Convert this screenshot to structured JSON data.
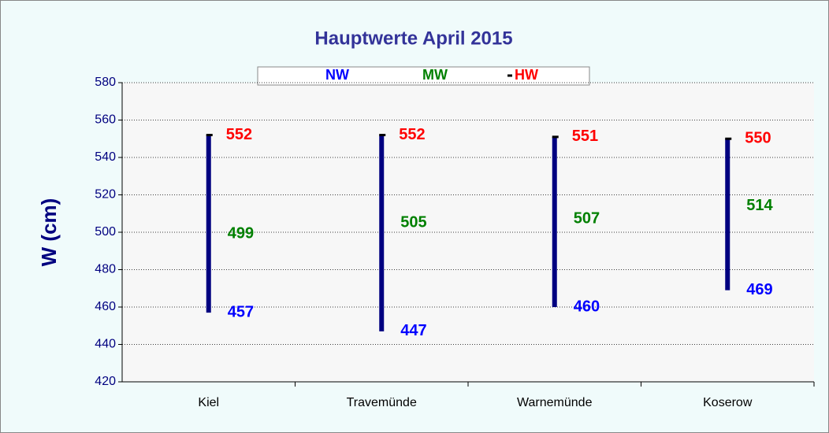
{
  "chart_data": {
    "type": "range",
    "title": "Hauptwerte April 2015",
    "y_label": "W (cm)",
    "categories": [
      "Kiel",
      "Travemünde",
      "Warnemünde",
      "Koserow"
    ],
    "series": [
      {
        "name": "NW",
        "color": "#0000ff",
        "values": [
          457,
          447,
          460,
          469
        ]
      },
      {
        "name": "MW",
        "color": "#008000",
        "values": [
          499,
          505,
          507,
          514
        ]
      },
      {
        "name": "HW",
        "color": "#ff0000",
        "values": [
          552,
          552,
          551,
          550
        ]
      }
    ],
    "bar_color": "#000080",
    "ylim": [
      420,
      580
    ],
    "yticks": [
      420,
      440,
      460,
      480,
      500,
      520,
      540,
      560,
      580
    ],
    "grid": true
  }
}
